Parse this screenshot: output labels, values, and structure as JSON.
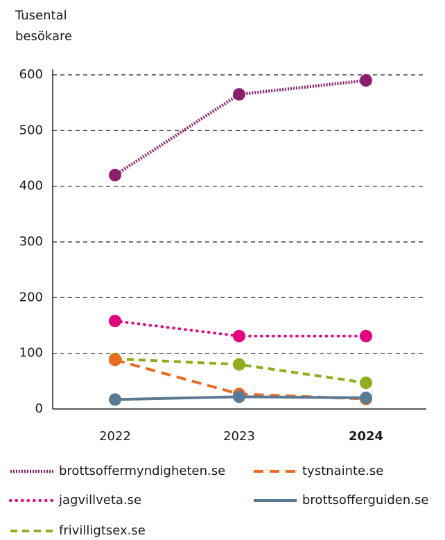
{
  "chart_data": {
    "type": "line",
    "y_label": "Tusental besökare",
    "categories": [
      "2022",
      "2023",
      "2024"
    ],
    "bold_categories": [
      false,
      false,
      true
    ],
    "series": [
      {
        "name": "brottsoffermyndigheten.se",
        "color": "#8b1f6e",
        "style": "dotted-dense",
        "values": [
          420,
          565,
          590
        ]
      },
      {
        "name": "tystnainte.se",
        "color": "#ee6a1f",
        "style": "dashed",
        "values": [
          88,
          27,
          18
        ]
      },
      {
        "name": "jagvillveta.se",
        "color": "#e5007d",
        "style": "dotted",
        "values": [
          158,
          131,
          131
        ]
      },
      {
        "name": "brottsofferguiden.se",
        "color": "#5a7a93",
        "style": "solid",
        "values": [
          17,
          22,
          20
        ]
      },
      {
        "name": "frivilligtsex.se",
        "color": "#8fae1b",
        "style": "dashed-short",
        "values": [
          90,
          80,
          47
        ]
      }
    ],
    "ylim": [
      0,
      600
    ],
    "yticks": [
      0,
      100,
      200,
      300,
      400,
      500,
      600
    ],
    "grid": true
  }
}
